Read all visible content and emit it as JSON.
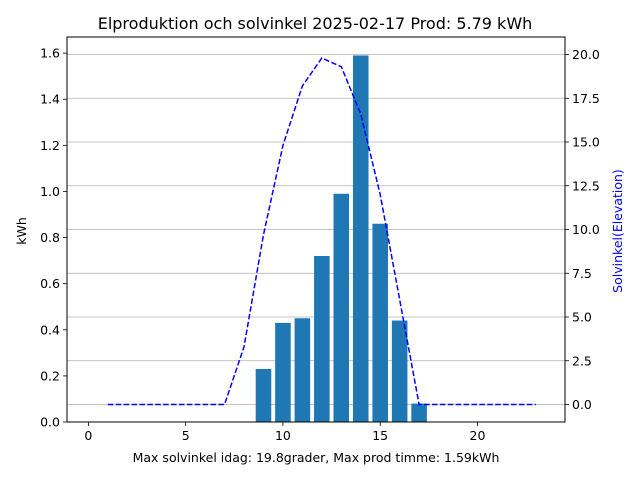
{
  "chart_data": {
    "type": "bar",
    "title": "Elproduktion och solvinkel 2025-02-17 Prod: 5.79 kWh",
    "xlabel": "Max solvinkel idag: 19.8grader, Max prod timme: 1.59kWh",
    "ylabel": "kWh",
    "y2label": "Solvinkel(Elevation)",
    "xlim": [
      -1.1,
      24.5
    ],
    "ylim": [
      0,
      1.67
    ],
    "y2lim": [
      -1.0,
      21.0
    ],
    "xticks": [
      0,
      5,
      10,
      15,
      20
    ],
    "yticks": [
      0.0,
      0.2,
      0.4,
      0.6,
      0.8,
      1.0,
      1.2,
      1.4,
      1.6
    ],
    "y2ticks": [
      0.0,
      2.5,
      5.0,
      7.5,
      10.0,
      12.5,
      15.0,
      17.5,
      20.0
    ],
    "grid": "y2-major",
    "bar_color": "#1f77b4",
    "line_color": "#0000ff",
    "series": [
      {
        "name": "kWh",
        "type": "bar",
        "axis": "left",
        "x": [
          9,
          10,
          11,
          12,
          13,
          14,
          15,
          16,
          17
        ],
        "values": [
          0.23,
          0.43,
          0.45,
          0.72,
          0.99,
          1.59,
          0.86,
          0.44,
          0.08
        ]
      },
      {
        "name": "Solvinkel",
        "type": "line",
        "axis": "right",
        "style": "dashed",
        "x": [
          1,
          2,
          3,
          4,
          5,
          6,
          7,
          8,
          9,
          10,
          11,
          12,
          13,
          14,
          15,
          16,
          17,
          18,
          19,
          20,
          21,
          22,
          23
        ],
        "values": [
          0,
          0,
          0,
          0,
          0,
          0,
          0,
          3.3,
          9.7,
          14.8,
          18.2,
          19.8,
          19.3,
          16.6,
          12.0,
          6.0,
          0,
          0,
          0,
          0,
          0,
          0,
          0
        ]
      }
    ]
  }
}
